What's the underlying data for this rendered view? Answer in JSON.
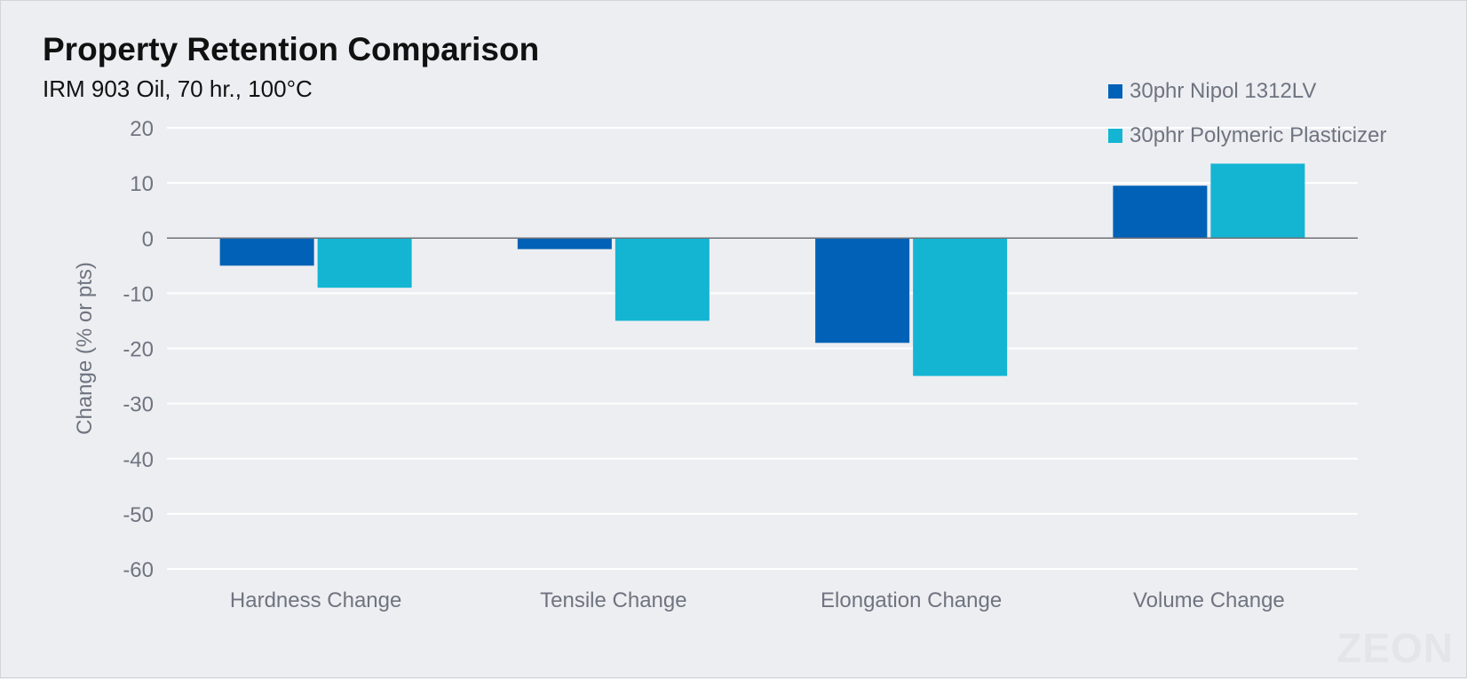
{
  "chart_data": {
    "type": "bar",
    "title": "Property Retention Comparison",
    "subtitle": "IRM 903 Oil, 70 hr., 100°C",
    "xlabel": "",
    "ylabel": "Change (% or pts)",
    "categories": [
      "Hardness Change",
      "Tensile Change",
      "Elongation Change",
      "Volume Change"
    ],
    "series": [
      {
        "name": "30phr Nipol 1312LV",
        "color": "#0061b7",
        "values": [
          -5,
          -2,
          -19,
          9.5
        ]
      },
      {
        "name": "30phr Polymeric Plasticizer",
        "color": "#13b5d3",
        "values": [
          -9,
          -15,
          -25,
          13.5
        ]
      }
    ],
    "ylim": [
      -60,
      20
    ],
    "yticks": [
      20,
      10,
      0,
      -10,
      -20,
      -30,
      -40,
      -50,
      -60
    ],
    "grid": true,
    "legend_position": "top-right"
  },
  "watermark": "ZEON"
}
